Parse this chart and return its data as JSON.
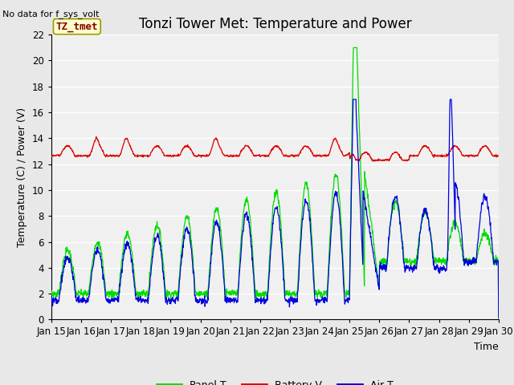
{
  "title": "Tonzi Tower Met: Temperature and Power",
  "ylabel": "Temperature (C) / Power (V)",
  "xlabel": "Time",
  "top_left_text": "No data for f_sys_volt",
  "legend_label_text": "TZ_tmet",
  "ylim": [
    0,
    22
  ],
  "x_tick_labels": [
    "Jan 15",
    "Jan 16",
    "Jan 17",
    "Jan 18",
    "Jan 19",
    "Jan 20",
    "Jan 21",
    "Jan 22",
    "Jan 23",
    "Jan 24",
    "Jan 25",
    "Jan 26",
    "Jan 27",
    "Jan 28",
    "Jan 29",
    "Jan 30"
  ],
  "panel_color": "#00dd00",
  "battery_color": "#dd0000",
  "air_color": "#0000dd",
  "background_color": "#e8e8e8",
  "plot_bg_color": "#f0f0f0",
  "grid_color": "#ffffff",
  "title_fontsize": 12,
  "axis_fontsize": 9,
  "tick_fontsize": 8.5,
  "legend_fontsize": 9
}
